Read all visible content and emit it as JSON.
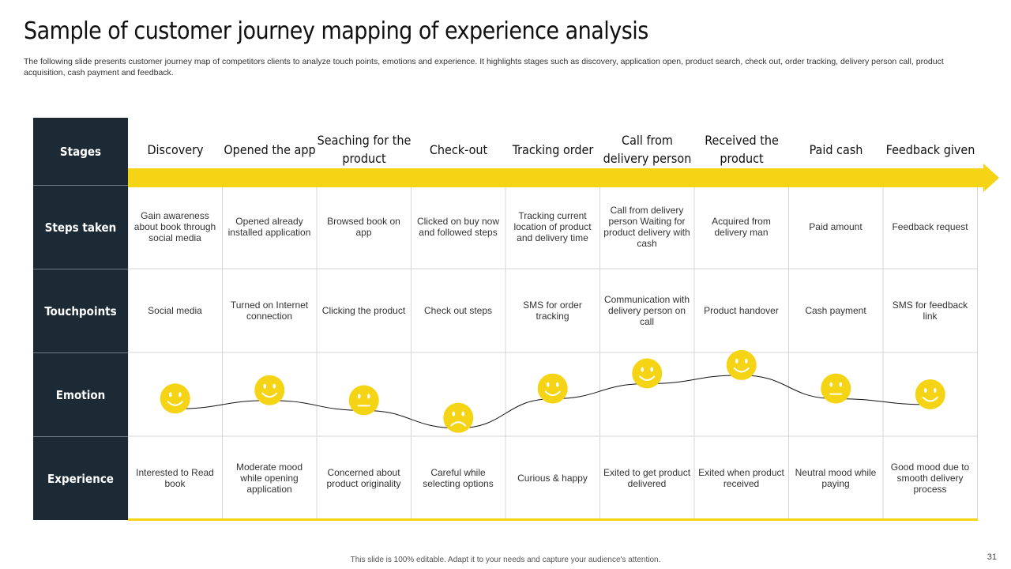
{
  "title": "Sample of customer journey mapping of experience analysis",
  "subtitle": "The following slide presents customer journey map of competitors clients to analyze touch points, emotions and experience. It highlights stages such as discovery, application open, product search, check out, order tracking, delivery person call, product acquisition, cash payment and feedback.",
  "footer": "This slide is 100% editable. Adapt it to your needs and capture your audience's attention.",
  "page_number": "31",
  "colors": {
    "accent": "#F5D416",
    "dark": "#1B2A35",
    "grid": "#D6D6D6"
  },
  "row_headers": [
    "Stages",
    "Steps taken",
    "Touchpoints",
    "Emotion",
    "Experience"
  ],
  "stages": [
    "Discovery",
    "Opened the app",
    "Seaching for the product",
    "Check-out",
    "Tracking order",
    "Call from delivery person",
    "Received the product",
    "Paid cash",
    "Feedback given"
  ],
  "steps_taken": [
    "Gain awareness about book through social media",
    "Opened already installed application",
    "Browsed book on app",
    "Clicked on buy now and followed steps",
    "Tracking current location of product and delivery time",
    "Call from delivery person Waiting for product delivery with cash",
    "Acquired from delivery man",
    "Paid amount",
    "Feedback request"
  ],
  "touchpoints": [
    "Social media",
    "Turned on Internet connection",
    "Clicking the product",
    "Check out steps",
    "SMS for order tracking",
    "Communication with delivery person on call",
    "Product handover",
    "Cash payment",
    "SMS for feedback link"
  ],
  "emotions": [
    {
      "mood": "happy",
      "icon": "smiley-happy-icon",
      "level": 0.45
    },
    {
      "mood": "happy",
      "icon": "smiley-happy-icon",
      "level": 0.55
    },
    {
      "mood": "neutral",
      "icon": "smiley-neutral-icon",
      "level": 0.43
    },
    {
      "mood": "sad",
      "icon": "smiley-sad-icon",
      "level": 0.22
    },
    {
      "mood": "happy",
      "icon": "smiley-happy-icon",
      "level": 0.57
    },
    {
      "mood": "happy",
      "icon": "smiley-happy-icon",
      "level": 0.75
    },
    {
      "mood": "happy",
      "icon": "smiley-happy-icon",
      "level": 0.85
    },
    {
      "mood": "neutral",
      "icon": "smiley-neutral-icon",
      "level": 0.57
    },
    {
      "mood": "happy",
      "icon": "smiley-happy-icon",
      "level": 0.5
    }
  ],
  "experience": [
    "Interested to Read book",
    "Moderate mood while opening application",
    "Concerned about product originality",
    "Careful while selecting options",
    "Curious & happy",
    "Exited to get product delivered",
    "Exited when product received",
    "Neutral mood while paying",
    "Good mood due to smooth delivery process"
  ]
}
